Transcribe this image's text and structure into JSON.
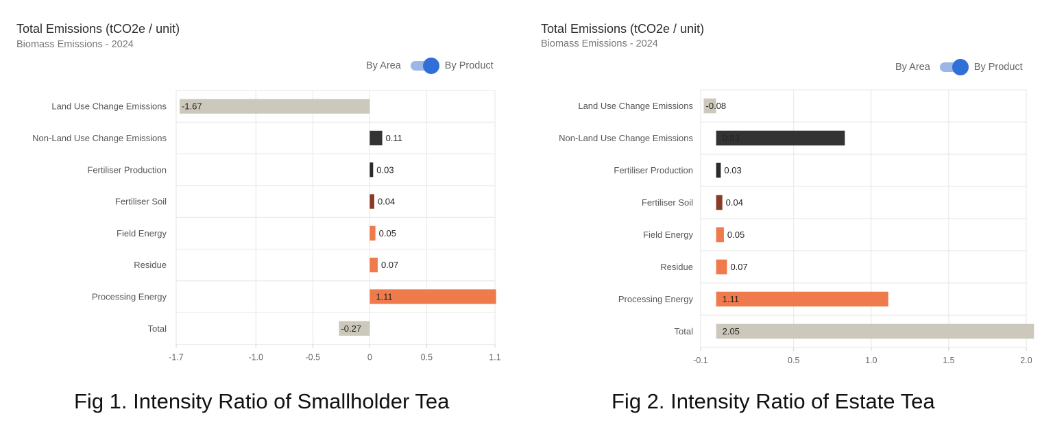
{
  "toggle": {
    "left_label": "By Area",
    "right_label": "By Product",
    "selected": "By Product"
  },
  "colors": {
    "land_use": "#cdc8bc",
    "non_land_use": "#333333",
    "fertiliser_production": "#2b2b2b",
    "fertiliser_soil": "#8a3b28",
    "field_energy": "#ef7a4a",
    "residue": "#ef7a4a",
    "processing_energy": "#ef7b4d",
    "total": "#cdc8bc",
    "grid": "#e6e6e6"
  },
  "chart_data": [
    {
      "type": "bar",
      "orientation": "horizontal",
      "title": "Total Emissions (tCO2e / unit)",
      "subtitle": "Biomass Emissions - 2024",
      "caption": "Fig 1. Intensity Ratio of Smallholder Tea",
      "categories": [
        "Land Use Change Emissions",
        "Non-Land Use Change Emissions",
        "Fertiliser Production",
        "Fertiliser Soil",
        "Field Energy",
        "Residue",
        "Processing Energy",
        "Total"
      ],
      "values": [
        -1.67,
        0.11,
        0.03,
        0.04,
        0.05,
        0.07,
        1.11,
        -0.27
      ],
      "labels": [
        "-1.67",
        "0.11",
        "0.03",
        "0.04",
        "0.05",
        "0.07",
        "1.11",
        "-0.27"
      ],
      "xlim": [
        -1.7,
        1.1
      ],
      "xticks": [
        -1.7,
        -1.0,
        -0.5,
        0,
        0.5,
        1.1
      ],
      "xtick_labels": [
        "-1.7",
        "-1.0",
        "-0.5",
        "0",
        "0.5",
        "1.1"
      ],
      "grid": true
    },
    {
      "type": "bar",
      "orientation": "horizontal",
      "title": "Total Emissions (tCO2e / unit)",
      "subtitle": "Biomass Emissions - 2024",
      "caption": "Fig 2. Intensity Ratio of Estate Tea",
      "categories": [
        "Land Use Change Emissions",
        "Non-Land Use Change Emissions",
        "Fertiliser Production",
        "Fertiliser Soil",
        "Field Energy",
        "Residue",
        "Processing Energy",
        "Total"
      ],
      "values": [
        -0.08,
        0.83,
        0.03,
        0.04,
        0.05,
        0.07,
        1.11,
        2.05
      ],
      "labels": [
        "-0.08",
        "0.83",
        "0.03",
        "0.04",
        "0.05",
        "0.07",
        "1.11",
        "2.05"
      ],
      "xlim": [
        -0.1,
        2.0
      ],
      "xticks": [
        -0.1,
        0.5,
        1.0,
        1.5,
        2.0
      ],
      "xtick_labels": [
        "-0.1",
        "0.5",
        "1.0",
        "1.5",
        "2.0"
      ],
      "grid": true
    }
  ]
}
